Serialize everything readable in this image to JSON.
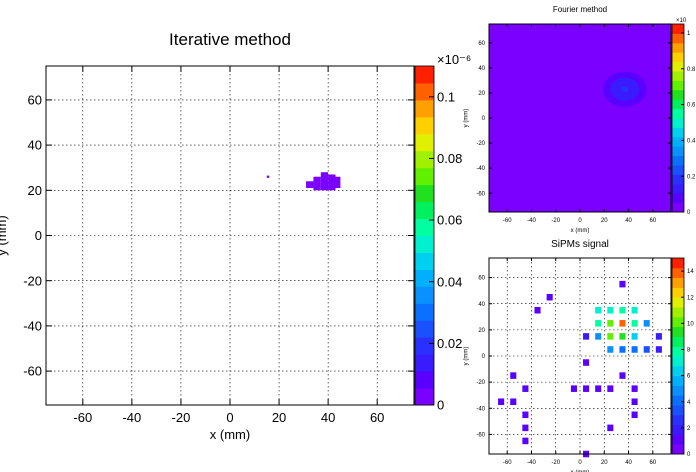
{
  "chart_data": [
    {
      "type": "heatmap",
      "title": "Iterative method",
      "xlabel": "x (mm)",
      "ylabel": "y (mm)",
      "xlim": [
        -75,
        75
      ],
      "ylim": [
        -75,
        75
      ],
      "xticks": [
        -60,
        -40,
        -20,
        0,
        20,
        40,
        60
      ],
      "yticks": [
        -60,
        -40,
        -20,
        0,
        20,
        40,
        60
      ],
      "grid": true,
      "colorbar": {
        "min": 0,
        "max": 0.11,
        "exponent_label": "×10⁻⁶",
        "ticks": [
          0,
          0.02,
          0.04,
          0.06,
          0.08,
          0.1
        ],
        "tick_labels": [
          "0",
          "0.02",
          "0.04",
          "0.06",
          "0.08",
          "0.1"
        ]
      },
      "cells": [
        {
          "x": 15,
          "y": 25.5,
          "w": 1.0,
          "h": 1.0,
          "v": 0.002
        },
        {
          "x": 31,
          "y": 21,
          "w": 3,
          "h": 3,
          "v": 0.004
        },
        {
          "x": 34,
          "y": 20,
          "w": 3,
          "h": 6,
          "v": 0.004
        },
        {
          "x": 37,
          "y": 20,
          "w": 3,
          "h": 8,
          "v": 0.005
        },
        {
          "x": 40,
          "y": 20,
          "w": 3,
          "h": 7,
          "v": 0.005
        },
        {
          "x": 43,
          "y": 21,
          "w": 2,
          "h": 5,
          "v": 0.004
        }
      ]
    },
    {
      "type": "heatmap",
      "title": "Fourier method",
      "xlabel": "x (mm)",
      "ylabel": "y (mm)",
      "xlim": [
        -75,
        75
      ],
      "ylim": [
        -75,
        75
      ],
      "xticks": [
        -60,
        -40,
        -20,
        0,
        20,
        40,
        60
      ],
      "yticks": [
        -60,
        -40,
        -20,
        0,
        20,
        40,
        60
      ],
      "grid": false,
      "background_value": 0.05,
      "colorbar": {
        "min": 0,
        "max": 1.05,
        "exponent_label": "×10",
        "ticks": [
          0,
          0.2,
          0.4,
          0.6,
          0.8,
          1
        ],
        "tick_labels": [
          "0",
          "0.2",
          "0.4",
          "0.6",
          "0.8",
          "1"
        ]
      },
      "blob": {
        "cx": 37,
        "cy": 23,
        "rx": 18,
        "ry": 14,
        "peak": 0.16
      }
    },
    {
      "type": "heatmap",
      "title": "SiPMs signal",
      "xlabel": "x (mm)",
      "ylabel": "y (mm)",
      "xlim": [
        -75,
        75
      ],
      "ylim": [
        -75,
        75
      ],
      "xticks": [
        -60,
        -40,
        -20,
        0,
        20,
        40,
        60
      ],
      "yticks": [
        -60,
        -40,
        -20,
        0,
        20,
        40,
        60
      ],
      "grid": true,
      "colorbar": {
        "min": 0,
        "max": 15,
        "ticks": [
          0,
          2,
          4,
          6,
          8,
          10,
          12,
          14
        ],
        "tick_labels": [
          "0",
          "2",
          "4",
          "6",
          "8",
          "10",
          "12",
          "14"
        ]
      },
      "cell_size": 5,
      "points": [
        {
          "x": 35,
          "y": 55,
          "v": 1
        },
        {
          "x": -25,
          "y": 45,
          "v": 1
        },
        {
          "x": -35,
          "y": 35,
          "v": 1
        },
        {
          "x": 15,
          "y": 35,
          "v": 7
        },
        {
          "x": 25,
          "y": 35,
          "v": 7
        },
        {
          "x": 35,
          "y": 35,
          "v": 8
        },
        {
          "x": 45,
          "y": 35,
          "v": 7
        },
        {
          "x": 15,
          "y": 25,
          "v": 8
        },
        {
          "x": 25,
          "y": 25,
          "v": 10
        },
        {
          "x": 35,
          "y": 25,
          "v": 14
        },
        {
          "x": 45,
          "y": 25,
          "v": 8
        },
        {
          "x": 55,
          "y": 25,
          "v": 5
        },
        {
          "x": 5,
          "y": 15,
          "v": 2
        },
        {
          "x": 15,
          "y": 15,
          "v": 5
        },
        {
          "x": 25,
          "y": 15,
          "v": 10
        },
        {
          "x": 35,
          "y": 15,
          "v": 9
        },
        {
          "x": 45,
          "y": 15,
          "v": 6
        },
        {
          "x": 65,
          "y": 15,
          "v": 2
        },
        {
          "x": 25,
          "y": 5,
          "v": 5
        },
        {
          "x": 35,
          "y": 5,
          "v": 4
        },
        {
          "x": 45,
          "y": 5,
          "v": 4
        },
        {
          "x": 55,
          "y": 5,
          "v": 3
        },
        {
          "x": 65,
          "y": 5,
          "v": 2
        },
        {
          "x": 5,
          "y": -5,
          "v": 1
        },
        {
          "x": -55,
          "y": -15,
          "v": 1
        },
        {
          "x": 35,
          "y": -15,
          "v": 1
        },
        {
          "x": -45,
          "y": -25,
          "v": 1
        },
        {
          "x": -5,
          "y": -25,
          "v": 1
        },
        {
          "x": 5,
          "y": -25,
          "v": 1
        },
        {
          "x": 15,
          "y": -25,
          "v": 1
        },
        {
          "x": 25,
          "y": -25,
          "v": 1
        },
        {
          "x": 45,
          "y": -25,
          "v": 1
        },
        {
          "x": -65,
          "y": -35,
          "v": 1
        },
        {
          "x": -55,
          "y": -35,
          "v": 1
        },
        {
          "x": 45,
          "y": -35,
          "v": 1
        },
        {
          "x": -45,
          "y": -45,
          "v": 1
        },
        {
          "x": 45,
          "y": -45,
          "v": 1
        },
        {
          "x": -45,
          "y": -55,
          "v": 1
        },
        {
          "x": 25,
          "y": -55,
          "v": 1
        },
        {
          "x": -45,
          "y": -65,
          "v": 1
        },
        {
          "x": 5,
          "y": -75,
          "v": 1
        }
      ]
    }
  ]
}
